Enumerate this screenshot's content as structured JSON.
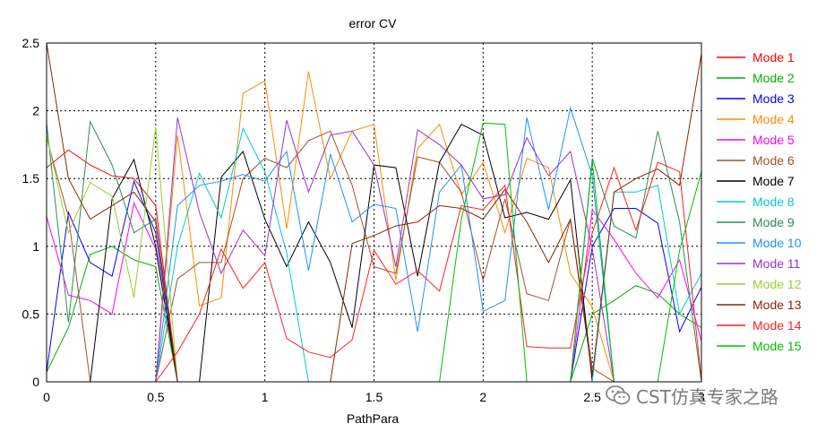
{
  "chart_data": {
    "type": "line",
    "title": "error CV",
    "xlabel": "PathPara",
    "ylabel": "",
    "xlim": [
      0,
      3
    ],
    "ylim": [
      0,
      2.5
    ],
    "x_ticks": [
      "0",
      "0.5",
      "1",
      "1.5",
      "2",
      "2.5",
      "3"
    ],
    "y_ticks": [
      "0",
      "0.5",
      "1",
      "1.5",
      "2",
      "2.5"
    ],
    "grid": true,
    "legend_position": "right",
    "x": [
      0,
      0.1,
      0.2,
      0.3,
      0.4,
      0.5,
      0.6,
      0.7,
      0.8,
      0.9,
      1.0,
      1.1,
      1.2,
      1.3,
      1.4,
      1.5,
      1.6,
      1.7,
      1.8,
      1.9,
      2.0,
      2.1,
      2.2,
      2.3,
      2.4,
      2.5,
      2.6,
      2.7,
      2.8,
      2.9,
      3.0
    ],
    "series": [
      {
        "name": "Mode 1",
        "color": "#ff0000",
        "values": [
          1.58,
          1.71,
          1.6,
          1.52,
          1.5,
          1.3,
          0,
          0,
          0,
          0,
          0,
          0,
          0,
          0,
          0,
          0,
          0,
          0,
          0,
          0,
          0,
          0,
          0,
          0,
          0,
          0,
          0,
          0,
          0,
          0,
          0
        ]
      },
      {
        "name": "Mode 2",
        "color": "#00b000",
        "values": [
          0.07,
          0.4,
          0.94,
          1.0,
          0.9,
          0.85,
          0,
          0,
          0,
          0,
          0,
          0,
          0,
          0,
          0,
          0,
          0,
          0,
          0,
          0,
          0,
          0,
          0,
          0,
          0,
          0.5,
          0.6,
          0.71,
          0.65,
          0.5,
          0.4
        ]
      },
      {
        "name": "Mode 3",
        "color": "#0000ff",
        "values": [
          0.07,
          1.25,
          0.88,
          0.78,
          1.48,
          1.1,
          0,
          0,
          0,
          0,
          0,
          0,
          0,
          0,
          0,
          0,
          0,
          0,
          0,
          0,
          0,
          0,
          0,
          0,
          0,
          1.0,
          1.28,
          1.28,
          1.17,
          0.37,
          0.7
        ]
      },
      {
        "name": "Mode 4",
        "color": "#ff8c00",
        "values": [
          0,
          0,
          0,
          0,
          0,
          0,
          1.82,
          0.56,
          0.62,
          2.13,
          2.22,
          1.13,
          2.29,
          1.5,
          1.85,
          1.9,
          0.75,
          1.72,
          1.9,
          1.38,
          1.62,
          1.1,
          1.65,
          1.58,
          0.8,
          0.55,
          0,
          0,
          0,
          0,
          0
        ]
      },
      {
        "name": "Mode 5",
        "color": "#ff00ff",
        "values": [
          1.22,
          0.64,
          0.6,
          0.5,
          1.32,
          0.98,
          0,
          0,
          0,
          0,
          0,
          0,
          0,
          0,
          0,
          0,
          0,
          0,
          0,
          0,
          0,
          0,
          0,
          0,
          0,
          1.27,
          1.05,
          0.8,
          0.62,
          0.9,
          0.3
        ]
      },
      {
        "name": "Mode 6",
        "color": "#a0522d",
        "values": [
          1.8,
          1.22,
          0,
          0,
          0,
          0,
          0.76,
          0.88,
          0.88,
          1.5,
          1.65,
          1.58,
          1.78,
          1.85,
          1.45,
          0.85,
          0.8,
          1.66,
          1.62,
          1.4,
          0.75,
          1.35,
          0.65,
          0.6,
          1.2,
          0.1,
          0,
          0,
          0,
          0,
          0
        ]
      },
      {
        "name": "Mode 7",
        "color": "#000000",
        "values": [
          0,
          0,
          0,
          1.35,
          1.64,
          1.0,
          0,
          0,
          1.51,
          1.7,
          1.2,
          0.85,
          1.18,
          0.88,
          0.4,
          1.6,
          1.58,
          0.78,
          1.62,
          1.9,
          1.82,
          1.21,
          1.25,
          1.2,
          1.49,
          0,
          0,
          0,
          0,
          0,
          0
        ]
      },
      {
        "name": "Mode 8",
        "color": "#00cccc",
        "values": [
          0,
          0,
          0,
          0,
          0,
          0,
          1.0,
          1.54,
          1.21,
          1.87,
          1.55,
          0.95,
          0,
          0,
          0,
          0,
          0,
          0,
          0,
          0,
          0,
          0,
          0,
          0,
          0,
          0,
          1.4,
          1.4,
          1.45,
          0.5,
          0.8
        ]
      },
      {
        "name": "Mode 9",
        "color": "#2e8b57",
        "values": [
          1.91,
          0.44,
          1.92,
          1.6,
          1.1,
          1.2,
          0,
          0,
          0,
          0,
          0,
          0,
          0,
          0,
          0,
          0,
          0,
          0,
          0,
          0,
          0,
          0,
          0,
          0,
          0,
          1.65,
          1.15,
          1.06,
          1.85,
          1.18,
          0
        ]
      },
      {
        "name": "Mode 10",
        "color": "#1e90ff",
        "values": [
          0,
          0,
          0,
          0,
          0,
          0,
          1.3,
          1.45,
          1.48,
          1.53,
          1.48,
          1.7,
          0.82,
          1.68,
          1.18,
          1.31,
          1.28,
          0.37,
          1.4,
          1.6,
          0.52,
          0.6,
          1.95,
          1.27,
          2.02,
          1.52,
          0,
          0,
          0,
          0,
          0
        ]
      },
      {
        "name": "Mode 11",
        "color": "#9932cc",
        "values": [
          0,
          0,
          0,
          0,
          0,
          0,
          1.95,
          1.25,
          0.8,
          1.12,
          0.93,
          1.93,
          1.4,
          1.82,
          1.85,
          1.6,
          0.85,
          1.86,
          1.75,
          1.6,
          1.35,
          1.38,
          1.8,
          1.52,
          1.7,
          0.98,
          0,
          0,
          0,
          0,
          0
        ]
      },
      {
        "name": "Mode 12",
        "color": "#9acd32",
        "values": [
          1.82,
          1.1,
          1.47,
          1.37,
          0.62,
          1.88,
          0,
          0,
          0,
          0,
          0,
          0,
          0,
          0,
          0,
          0,
          0,
          0,
          0,
          0,
          0,
          0,
          0,
          0,
          0,
          0,
          0,
          0,
          0,
          0,
          0
        ]
      },
      {
        "name": "Mode 13",
        "color": "#8b2500",
        "values": [
          2.5,
          1.5,
          1.2,
          1.3,
          1.4,
          1.18,
          0,
          0,
          0,
          0,
          0,
          0,
          0,
          0,
          1.02,
          1.08,
          1.15,
          1.18,
          1.3,
          1.28,
          1.2,
          1.42,
          1.18,
          0.88,
          1.2,
          0.05,
          1.4,
          1.5,
          1.57,
          1.45,
          2.42
        ]
      },
      {
        "name": "Mode 14",
        "color": "#ff2020",
        "values": [
          0,
          0,
          0,
          0,
          0,
          0,
          0.22,
          0.5,
          0.98,
          0.69,
          0.88,
          0.32,
          0.22,
          0.18,
          0.31,
          0.97,
          0.72,
          0.82,
          0.67,
          1.3,
          1.27,
          1.45,
          0.26,
          0.25,
          0.25,
          1.1,
          1.58,
          1.12,
          1.62,
          1.55,
          0.01
        ]
      },
      {
        "name": "Mode 15",
        "color": "#00c000",
        "values": [
          0,
          0,
          0,
          0,
          0,
          0,
          0,
          0,
          0,
          0,
          0,
          0,
          0,
          0,
          0,
          0,
          0,
          0,
          0,
          1.2,
          1.91,
          1.9,
          0,
          0,
          0,
          1.63,
          0,
          0,
          0,
          0.97,
          1.55
        ]
      }
    ]
  },
  "watermark": {
    "text": "CST仿真专家之路",
    "icon": "wechat-icon"
  }
}
